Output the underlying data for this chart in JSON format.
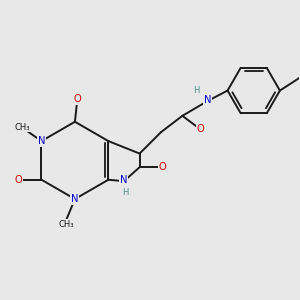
{
  "bg_color": "#e8e8e8",
  "bond_color": "#1a1a1a",
  "bond_width": 1.4,
  "N_color": "#0000cc",
  "O_color": "#cc0000",
  "H_color": "#4a8f8f",
  "C_color": "#1a1a1a",
  "figsize": [
    3.0,
    3.0
  ],
  "dpi": 100,
  "xlim": [
    0.5,
    10.5
  ],
  "ylim": [
    1.0,
    10.5
  ]
}
